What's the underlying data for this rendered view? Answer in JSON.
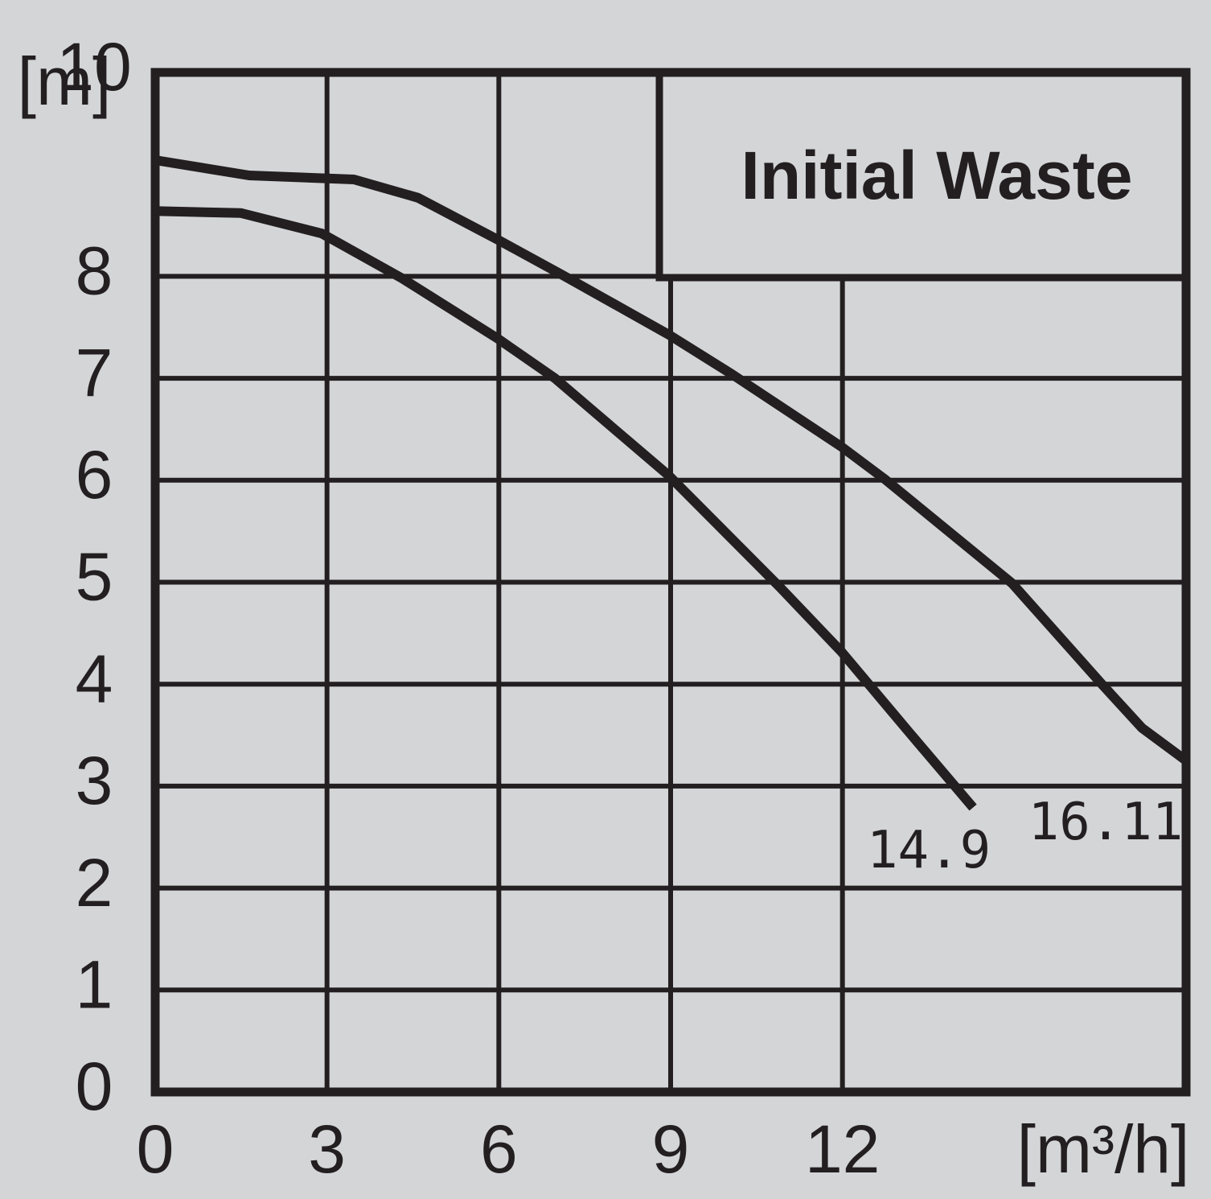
{
  "chart_data": {
    "type": "line",
    "title": "Initial Waste",
    "y_label": "[m]",
    "x_label": "[m³/h]",
    "xlim": [
      0,
      18
    ],
    "ylim": [
      0,
      10
    ],
    "xticks": [
      0,
      3,
      6,
      9,
      12
    ],
    "yticks": [
      0,
      1,
      2,
      3,
      4,
      5,
      6,
      7,
      8,
      10
    ],
    "grid": true,
    "series": [
      {
        "name": "14.9",
        "color": "#231f20",
        "x": [
          0,
          1.5,
          2.91,
          4.31,
          5.98,
          6.98,
          8.96,
          10.91,
          11.98,
          13.16,
          14.28
        ],
        "values": [
          8.64,
          8.62,
          8.42,
          7.98,
          7.39,
          7.0,
          6.05,
          4.95,
          4.32,
          3.53,
          2.79
        ]
      },
      {
        "name": "16.11",
        "color": "#231f20",
        "x": [
          0,
          1.64,
          3.47,
          4.59,
          5.98,
          7.12,
          8.96,
          10.07,
          11.98,
          12.74,
          14.96,
          16.53,
          17.23,
          18
        ],
        "values": [
          9.14,
          8.99,
          8.95,
          8.77,
          8.36,
          8.01,
          7.43,
          7.04,
          6.33,
          6.01,
          4.99,
          4.0,
          3.57,
          3.25
        ]
      }
    ]
  }
}
